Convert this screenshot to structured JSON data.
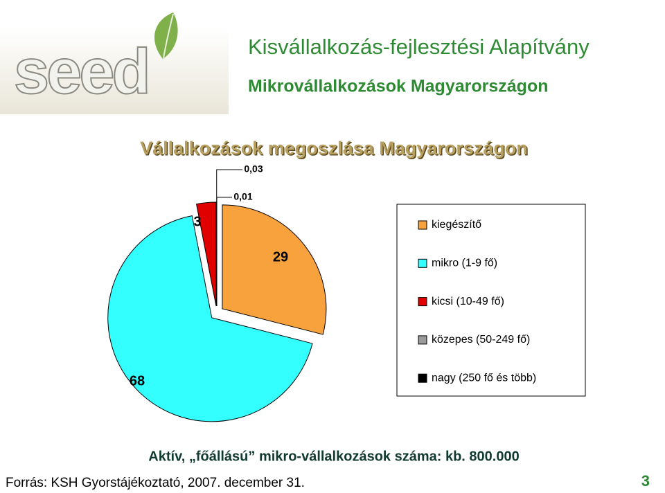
{
  "header": {
    "logo": "seed",
    "title": "Kisvállalkozás-fejlesztési Alapítvány",
    "subtitle": "Mikrovállalkozások Magyarországon"
  },
  "chart_data": {
    "type": "pie",
    "title": "Vállalkozások megoszlása Magyarországon",
    "categories": [
      "kiegészítő",
      "mikro (1-9 fő)",
      "kicsi (10-49 fő)",
      "közepes (50-249 fő)",
      "nagy (250 fő és több)"
    ],
    "values": [
      29,
      68,
      3,
      0.03,
      0.01
    ],
    "value_labels": [
      "29",
      "68",
      "3",
      "0,03",
      "0,01"
    ],
    "colors": [
      "#f7a23c",
      "#33ffff",
      "#e00000",
      "#9a9a9a",
      "#000000"
    ],
    "legend": "right",
    "note": "Aktív, „főállású” mikro-vállalkozások száma: kb. 800.000"
  },
  "footer": {
    "source": "Forrás: KSH Gyorstájékoztató, 2007. december 31.",
    "page": "3"
  }
}
